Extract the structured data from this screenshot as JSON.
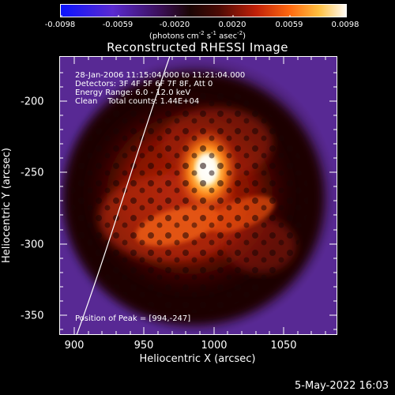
{
  "colorbar": {
    "ticks": [
      "-0.0098",
      "-0.0059",
      "-0.0020",
      "0.0020",
      "0.0059",
      "0.0098"
    ],
    "units_main": "(photons cm",
    "units_exp1": "-2",
    "units_mid1": " s",
    "units_exp2": "-1",
    "units_mid2": " asec",
    "units_exp3": "-2",
    "units_end": ")"
  },
  "title": "Reconstructed RHESSI Image",
  "annotations": {
    "line1": "28-Jan-2006 11:15:04.000 to 11:21:04.000",
    "line2": "Detectors: 3F 4F 5F 6F 7F 8F, Att 0",
    "line3": "Energy Range: 6.0 - 12.0 keV",
    "line4": "Clean    Total counts: 1.44E+04",
    "peak": "Position of Peak = [994,-247]"
  },
  "axes": {
    "xlabel": "Heliocentric X (arcsec)",
    "ylabel": "Heliocentric Y (arcsec)",
    "xticks": [
      "900",
      "950",
      "1000",
      "1050"
    ],
    "yticks": [
      "-200",
      "-250",
      "-300",
      "-350"
    ]
  },
  "footer": "5-May-2022 16:03",
  "colors": {
    "background": "#000000",
    "foreground": "#ffffff",
    "colormap": [
      "#1a1aff",
      "#6a2fb0",
      "#2a0a08",
      "#8a1a08",
      "#e04010",
      "#ff9a20",
      "#ffffe8"
    ]
  }
}
